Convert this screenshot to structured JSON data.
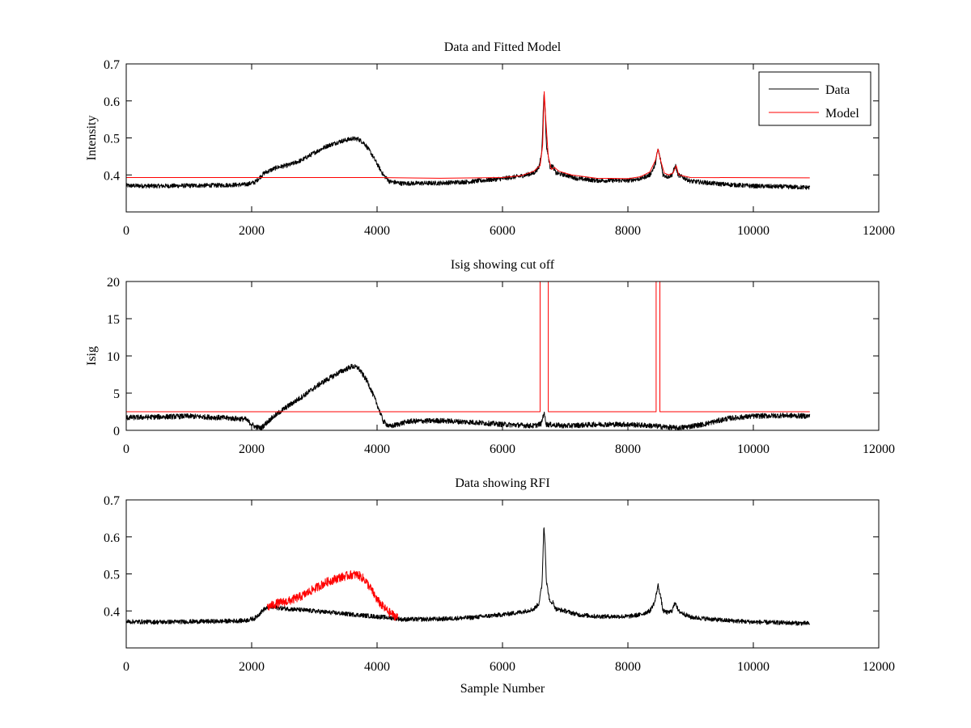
{
  "chart_data": [
    {
      "type": "line",
      "title": "Data and Fitted Model",
      "xlabel": "",
      "ylabel": "Intensity",
      "xlim": [
        0,
        12000
      ],
      "ylim": [
        0.3,
        0.7
      ],
      "xticks": [
        0,
        2000,
        4000,
        6000,
        8000,
        10000,
        12000
      ],
      "yticks": [
        0.4,
        0.5,
        0.6,
        0.7
      ],
      "ytick_labels": [
        "0.4",
        "0.5",
        "0.6",
        "0.7"
      ],
      "grid": false,
      "legend": {
        "placement": "top-right",
        "entries": [
          "Data",
          "Model"
        ]
      },
      "series": [
        {
          "name": "Data",
          "color": "#000000",
          "noise": 0.006,
          "points": [
            [
              0,
              0.371
            ],
            [
              500,
              0.37
            ],
            [
              1000,
              0.371
            ],
            [
              1500,
              0.372
            ],
            [
              1900,
              0.374
            ],
            [
              2050,
              0.38
            ],
            [
              2200,
              0.405
            ],
            [
              2400,
              0.42
            ],
            [
              2600,
              0.427
            ],
            [
              2800,
              0.44
            ],
            [
              3000,
              0.46
            ],
            [
              3200,
              0.478
            ],
            [
              3400,
              0.49
            ],
            [
              3600,
              0.498
            ],
            [
              3700,
              0.497
            ],
            [
              3800,
              0.485
            ],
            [
              3900,
              0.46
            ],
            [
              4000,
              0.43
            ],
            [
              4100,
              0.4
            ],
            [
              4200,
              0.382
            ],
            [
              4400,
              0.377
            ],
            [
              5000,
              0.378
            ],
            [
              5500,
              0.382
            ],
            [
              6000,
              0.39
            ],
            [
              6300,
              0.397
            ],
            [
              6500,
              0.405
            ],
            [
              6580,
              0.42
            ],
            [
              6630,
              0.47
            ],
            [
              6660,
              0.62
            ],
            [
              6680,
              0.58
            ],
            [
              6700,
              0.48
            ],
            [
              6760,
              0.42
            ],
            [
              6800,
              0.425
            ],
            [
              6850,
              0.405
            ],
            [
              7000,
              0.4
            ],
            [
              7200,
              0.39
            ],
            [
              7500,
              0.385
            ],
            [
              8000,
              0.385
            ],
            [
              8200,
              0.39
            ],
            [
              8350,
              0.4
            ],
            [
              8430,
              0.425
            ],
            [
              8480,
              0.47
            ],
            [
              8520,
              0.44
            ],
            [
              8560,
              0.4
            ],
            [
              8640,
              0.395
            ],
            [
              8700,
              0.4
            ],
            [
              8760,
              0.425
            ],
            [
              8800,
              0.4
            ],
            [
              9000,
              0.383
            ],
            [
              9500,
              0.375
            ],
            [
              10000,
              0.37
            ],
            [
              10500,
              0.368
            ],
            [
              10900,
              0.366
            ]
          ]
        },
        {
          "name": "Model",
          "color": "#ff0000",
          "noise": 0,
          "points": [
            [
              0,
              0.393
            ],
            [
              4000,
              0.393
            ],
            [
              5000,
              0.391
            ],
            [
              6000,
              0.393
            ],
            [
              6300,
              0.398
            ],
            [
              6500,
              0.41
            ],
            [
              6600,
              0.425
            ],
            [
              6640,
              0.48
            ],
            [
              6665,
              0.625
            ],
            [
              6690,
              0.55
            ],
            [
              6730,
              0.45
            ],
            [
              6780,
              0.415
            ],
            [
              6830,
              0.42
            ],
            [
              6900,
              0.41
            ],
            [
              7100,
              0.4
            ],
            [
              7500,
              0.391
            ],
            [
              8000,
              0.39
            ],
            [
              8200,
              0.395
            ],
            [
              8350,
              0.408
            ],
            [
              8440,
              0.44
            ],
            [
              8480,
              0.47
            ],
            [
              8520,
              0.44
            ],
            [
              8580,
              0.405
            ],
            [
              8650,
              0.4
            ],
            [
              8720,
              0.405
            ],
            [
              8770,
              0.425
            ],
            [
              8810,
              0.4
            ],
            [
              9000,
              0.393
            ],
            [
              10900,
              0.392
            ]
          ]
        }
      ]
    },
    {
      "type": "line",
      "title": "Isig showing cut off",
      "xlabel": "",
      "ylabel": "Isig",
      "xlim": [
        0,
        12000
      ],
      "ylim": [
        0,
        20
      ],
      "xticks": [
        0,
        2000,
        4000,
        6000,
        8000,
        10000,
        12000
      ],
      "yticks": [
        0,
        5,
        10,
        15,
        20
      ],
      "ytick_labels": [
        "0",
        "5",
        "10",
        "15",
        "20"
      ],
      "grid": false,
      "series": [
        {
          "color": "#000000",
          "noise": 0.35,
          "points": [
            [
              0,
              1.7
            ],
            [
              500,
              1.8
            ],
            [
              1000,
              1.9
            ],
            [
              1500,
              1.7
            ],
            [
              1900,
              1.5
            ],
            [
              2050,
              0.5
            ],
            [
              2150,
              0.3
            ],
            [
              2300,
              1.5
            ],
            [
              2500,
              2.8
            ],
            [
              2800,
              4.5
            ],
            [
              3100,
              6.3
            ],
            [
              3400,
              7.8
            ],
            [
              3600,
              8.6
            ],
            [
              3700,
              8.4
            ],
            [
              3850,
              6.5
            ],
            [
              4000,
              3.5
            ],
            [
              4100,
              1.2
            ],
            [
              4200,
              0.5
            ],
            [
              4500,
              1.2
            ],
            [
              5000,
              1.3
            ],
            [
              5500,
              1.1
            ],
            [
              6000,
              0.8
            ],
            [
              6500,
              0.6
            ],
            [
              6620,
              0.9
            ],
            [
              6660,
              2.4
            ],
            [
              6700,
              0.8
            ],
            [
              7000,
              0.6
            ],
            [
              7500,
              0.8
            ],
            [
              8000,
              0.8
            ],
            [
              8400,
              0.6
            ],
            [
              8800,
              0.3
            ],
            [
              9200,
              0.8
            ],
            [
              9600,
              1.6
            ],
            [
              10000,
              1.9
            ],
            [
              10500,
              2.0
            ],
            [
              10900,
              1.9
            ]
          ]
        },
        {
          "color": "#ff0000",
          "noise": 0,
          "points": [
            [
              0,
              2.5
            ],
            [
              6600,
              2.5
            ],
            [
              6600,
              20
            ],
            [
              6730,
              20
            ],
            [
              6730,
              2.5
            ],
            [
              8450,
              2.5
            ],
            [
              8450,
              20
            ],
            [
              8510,
              20
            ],
            [
              8510,
              2.5
            ],
            [
              10900,
              2.5
            ]
          ]
        }
      ]
    },
    {
      "type": "line",
      "title": "Data showing RFI",
      "xlabel": "Sample Number",
      "ylabel": "",
      "xlim": [
        0,
        12000
      ],
      "ylim": [
        0.3,
        0.7
      ],
      "xticks": [
        0,
        2000,
        4000,
        6000,
        8000,
        10000,
        12000
      ],
      "yticks": [
        0.4,
        0.5,
        0.6,
        0.7
      ],
      "ytick_labels": [
        "0.4",
        "0.5",
        "0.6",
        "0.7"
      ],
      "grid": false,
      "series": [
        {
          "color": "#000000",
          "noise": 0.006,
          "points": [
            [
              0,
              0.371
            ],
            [
              500,
              0.37
            ],
            [
              1000,
              0.371
            ],
            [
              1500,
              0.372
            ],
            [
              1900,
              0.374
            ],
            [
              2050,
              0.38
            ],
            [
              2200,
              0.405
            ],
            [
              2300,
              0.41
            ],
            [
              4300,
              0.38
            ],
            [
              4400,
              0.377
            ],
            [
              5000,
              0.378
            ],
            [
              5500,
              0.382
            ],
            [
              6000,
              0.39
            ],
            [
              6300,
              0.397
            ],
            [
              6500,
              0.405
            ],
            [
              6580,
              0.42
            ],
            [
              6630,
              0.47
            ],
            [
              6660,
              0.63
            ],
            [
              6680,
              0.58
            ],
            [
              6700,
              0.48
            ],
            [
              6760,
              0.42
            ],
            [
              6800,
              0.425
            ],
            [
              6850,
              0.405
            ],
            [
              7000,
              0.4
            ],
            [
              7200,
              0.39
            ],
            [
              7500,
              0.385
            ],
            [
              8000,
              0.385
            ],
            [
              8200,
              0.39
            ],
            [
              8350,
              0.4
            ],
            [
              8430,
              0.425
            ],
            [
              8480,
              0.47
            ],
            [
              8520,
              0.44
            ],
            [
              8560,
              0.4
            ],
            [
              8640,
              0.395
            ],
            [
              8700,
              0.4
            ],
            [
              8760,
              0.425
            ],
            [
              8800,
              0.4
            ],
            [
              9000,
              0.383
            ],
            [
              9500,
              0.375
            ],
            [
              10000,
              0.37
            ],
            [
              10500,
              0.368
            ],
            [
              10900,
              0.366
            ]
          ]
        },
        {
          "color": "#ff0000",
          "noise": 0.012,
          "points": [
            [
              2250,
              0.41
            ],
            [
              2400,
              0.42
            ],
            [
              2600,
              0.427
            ],
            [
              2800,
              0.44
            ],
            [
              3000,
              0.46
            ],
            [
              3200,
              0.478
            ],
            [
              3400,
              0.49
            ],
            [
              3600,
              0.498
            ],
            [
              3700,
              0.497
            ],
            [
              3800,
              0.485
            ],
            [
              3900,
              0.46
            ],
            [
              4000,
              0.43
            ],
            [
              4100,
              0.41
            ],
            [
              4200,
              0.395
            ],
            [
              4330,
              0.382
            ]
          ]
        }
      ]
    }
  ]
}
